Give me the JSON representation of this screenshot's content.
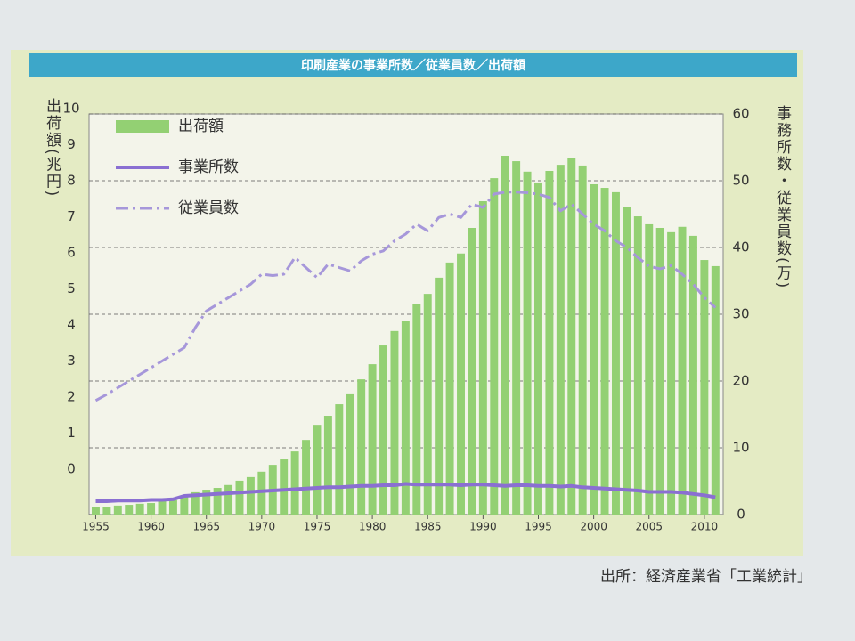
{
  "chart_data": {
    "type": "bar",
    "title": "印刷産業の事業所数／従業員数／出荷額",
    "y_label": "出荷額(兆円)",
    "y2_label": "事務所数・従業員数(万)",
    "source": "出所：経済産業省「工業統計」",
    "x": [
      1955,
      1956,
      1957,
      1958,
      1959,
      1960,
      1961,
      1962,
      1963,
      1964,
      1965,
      1966,
      1967,
      1968,
      1969,
      1970,
      1971,
      1972,
      1973,
      1974,
      1975,
      1976,
      1977,
      1978,
      1979,
      1980,
      1981,
      1982,
      1983,
      1984,
      1985,
      1986,
      1987,
      1988,
      1989,
      1990,
      1991,
      1992,
      1993,
      1994,
      1995,
      1996,
      1997,
      1998,
      1999,
      2000,
      2001,
      2002,
      2003,
      2004,
      2005,
      2006,
      2007,
      2008,
      2009,
      2010,
      2011
    ],
    "series": [
      {
        "name": "出荷額",
        "type": "bar",
        "axis": "y",
        "color": "#93d073",
        "values": [
          -1.05,
          -1.04,
          -1.01,
          -0.99,
          -0.96,
          -0.94,
          -0.89,
          -0.86,
          -0.77,
          -0.64,
          -0.57,
          -0.52,
          -0.44,
          -0.32,
          -0.22,
          -0.07,
          0.12,
          0.27,
          0.49,
          0.81,
          1.23,
          1.48,
          1.8,
          2.1,
          2.49,
          2.91,
          3.43,
          3.83,
          4.12,
          4.57,
          4.86,
          5.31,
          5.73,
          5.98,
          6.69,
          7.43,
          8.07,
          8.69,
          8.54,
          8.25,
          7.95,
          8.27,
          8.44,
          8.64,
          8.42,
          7.9,
          7.8,
          7.68,
          7.28,
          7.01,
          6.79,
          6.69,
          6.57,
          6.72,
          6.47,
          5.8,
          5.63
        ]
      },
      {
        "name": "事業所数",
        "type": "line",
        "style": "solid",
        "axis": "y2",
        "color": "#8a6fd2",
        "values": [
          2.0,
          2.0,
          2.1,
          2.1,
          2.1,
          2.2,
          2.2,
          2.3,
          2.8,
          2.9,
          3.0,
          3.1,
          3.2,
          3.3,
          3.4,
          3.5,
          3.6,
          3.7,
          3.8,
          3.9,
          4.0,
          4.1,
          4.1,
          4.2,
          4.3,
          4.3,
          4.4,
          4.4,
          4.6,
          4.5,
          4.5,
          4.5,
          4.5,
          4.4,
          4.5,
          4.5,
          4.4,
          4.3,
          4.4,
          4.4,
          4.3,
          4.3,
          4.2,
          4.3,
          4.1,
          4.0,
          3.9,
          3.8,
          3.7,
          3.6,
          3.4,
          3.4,
          3.4,
          3.3,
          3.1,
          2.9,
          2.6
        ]
      },
      {
        "name": "従業員数",
        "type": "line",
        "style": "dashdot",
        "axis": "y2",
        "color": "#a697da",
        "values": [
          17.1,
          18,
          19,
          20,
          21,
          22,
          23,
          24,
          25,
          28,
          30.5,
          31.5,
          32.5,
          33.5,
          34.5,
          36,
          35.8,
          36,
          38.5,
          37,
          35.5,
          37.5,
          37,
          36.5,
          38,
          39,
          39.5,
          41,
          42,
          43.5,
          42.5,
          44.5,
          45,
          44.5,
          46.5,
          46,
          48,
          48.3,
          48.3,
          48.2,
          48,
          47.5,
          45.5,
          46.5,
          45,
          43.5,
          42.5,
          41,
          40,
          38.5,
          37.2,
          36.8,
          37.3,
          36,
          34.5,
          32.5,
          31
        ]
      }
    ],
    "xlim": [
      1954.4,
      2011.7
    ],
    "xticks": [
      1955,
      1960,
      1965,
      1970,
      1975,
      1980,
      1985,
      1990,
      1995,
      2000,
      2005,
      2010
    ],
    "ylim": [
      -1.26,
      9.85
    ],
    "yticks": [
      0,
      1,
      2,
      3,
      4,
      5,
      6,
      7,
      8,
      9,
      10
    ],
    "y2lim": [
      0,
      60
    ],
    "y2ticks": [
      0,
      10,
      20,
      30,
      40,
      50,
      60
    ],
    "grid": true,
    "legend": "top-left"
  }
}
